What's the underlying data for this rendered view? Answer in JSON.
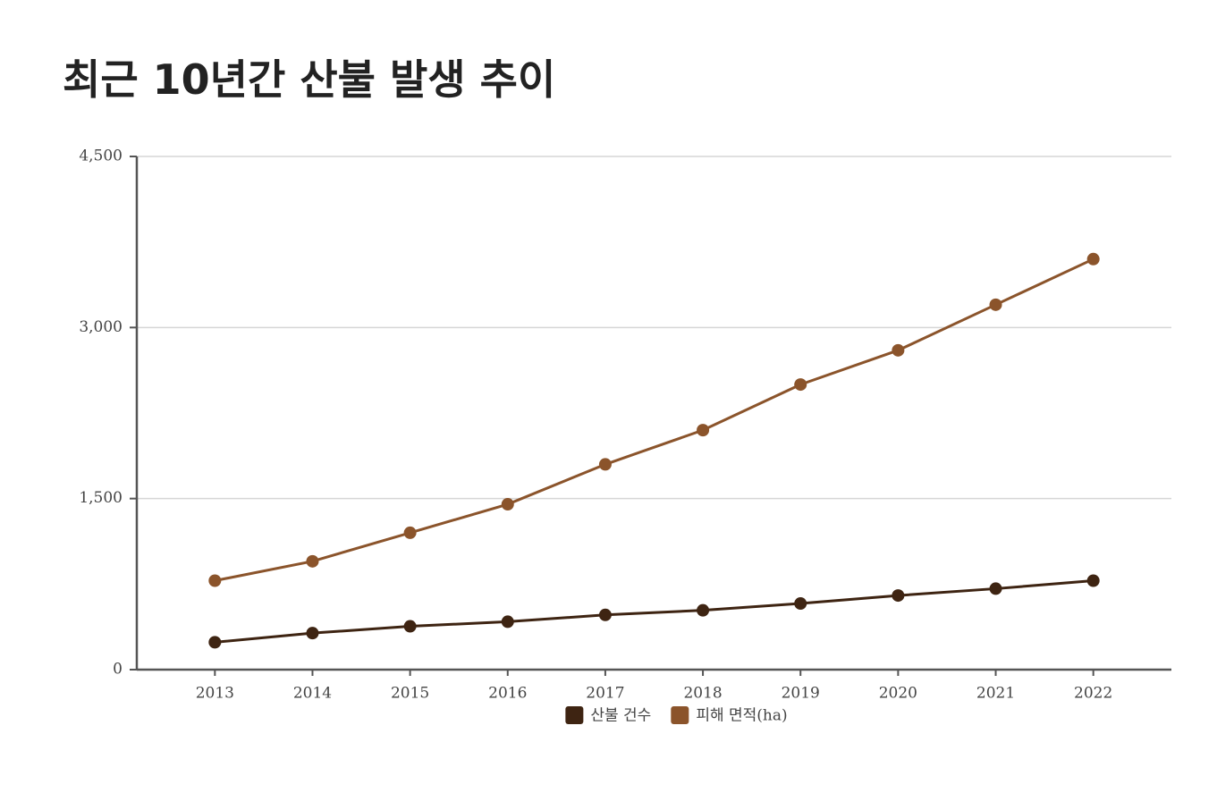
{
  "chart_data": {
    "type": "line",
    "title": "최근 10년간 산불 발생 추이",
    "categories": [
      "2013",
      "2014",
      "2015",
      "2016",
      "2017",
      "2018",
      "2019",
      "2020",
      "2021",
      "2022"
    ],
    "series": [
      {
        "name": "산불 건수",
        "color": "#3e2412",
        "values": [
          240,
          320,
          380,
          420,
          480,
          520,
          580,
          650,
          710,
          780
        ]
      },
      {
        "name": "피해 면적(ha)",
        "color": "#8b542b",
        "values": [
          780,
          950,
          1200,
          1450,
          1800,
          2100,
          2500,
          2800,
          3200,
          3600
        ]
      }
    ],
    "ylim": [
      0,
      4500
    ],
    "yticks": [
      0,
      {
        "value": 1500,
        "label": "1,500"
      },
      {
        "value": 3000,
        "label": "3,000"
      },
      {
        "value": 4500,
        "label": "4,500"
      }
    ],
    "grid": true
  }
}
